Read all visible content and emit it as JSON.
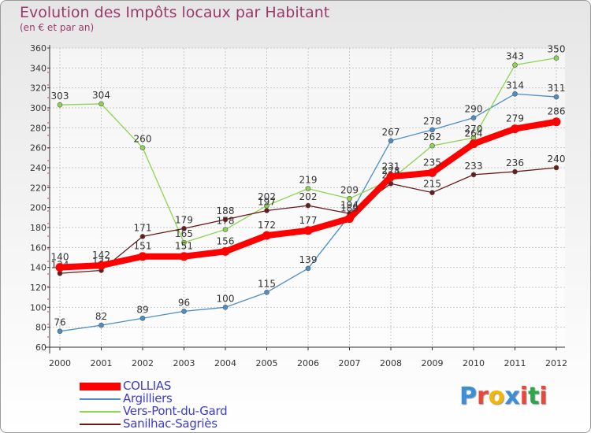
{
  "header": {
    "title": "Evolution des Impôts locaux par Habitant",
    "subtitle": "(en € et par an)"
  },
  "logo": {
    "letters": [
      "P",
      "r",
      "o",
      "x",
      "i",
      "t",
      "i"
    ],
    "colors": [
      "#3b8fd6",
      "#e8473a",
      "#f2b705",
      "#3b8fd6",
      "#e8473a",
      "#2aa84a",
      "#e8473a"
    ]
  },
  "chart_data": {
    "type": "line",
    "title": "Evolution des Impôts locaux par Habitant",
    "subtitle": "(en € et par an)",
    "xlabel": "",
    "ylabel": "",
    "categories": [
      "2000",
      "2001",
      "2002",
      "2003",
      "2004",
      "2005",
      "2006",
      "2007",
      "2008",
      "2009",
      "2010",
      "2011",
      "2012"
    ],
    "ylim": [
      60,
      360
    ],
    "yticks": [
      "60",
      "80",
      "100",
      "120",
      "140",
      "160",
      "180",
      "200",
      "220",
      "240",
      "260",
      "280",
      "300",
      "320",
      "340",
      "360"
    ],
    "grid": true,
    "legend": "bottom-left",
    "series": [
      {
        "name": "Argilliers",
        "color": "#4b8ec8",
        "values": [
          76,
          82,
          89,
          96,
          100,
          115,
          139,
          192,
          267,
          278,
          290,
          314,
          311
        ],
        "labels": [
          "76",
          "82",
          "89",
          "96",
          "100",
          "115",
          "139",
          "",
          "267",
          "278",
          "290",
          "314",
          "311"
        ]
      },
      {
        "name": "Vers-Pont-du-Gard",
        "color": "#8ed450",
        "values": [
          303,
          304,
          260,
          165,
          178,
          202,
          219,
          209,
          228,
          262,
          270,
          343,
          350
        ],
        "labels": [
          "303",
          "304",
          "260",
          "165",
          "178",
          "202",
          "219",
          "209",
          "228",
          "262",
          "270",
          "343",
          "350"
        ]
      },
      {
        "name": "Sanilhac-Sagriès",
        "color": "#6b1a1a",
        "values": [
          134,
          137,
          171,
          179,
          188,
          197,
          202,
          194,
          224,
          215,
          233,
          236,
          240
        ],
        "labels": [
          "134",
          "137",
          "171",
          "179",
          "188",
          "197",
          "202",
          "194",
          "224",
          "215",
          "233",
          "236",
          "240"
        ]
      },
      {
        "name": "COLLIAS",
        "color": "#ff0000",
        "values": [
          140,
          142,
          151,
          151,
          156,
          172,
          177,
          189,
          231,
          235,
          264,
          279,
          286
        ],
        "labels": [
          "140",
          "142",
          "151",
          "151",
          "156",
          "172",
          "177",
          "189",
          "231",
          "235",
          "264",
          "279",
          "286"
        ]
      }
    ]
  }
}
